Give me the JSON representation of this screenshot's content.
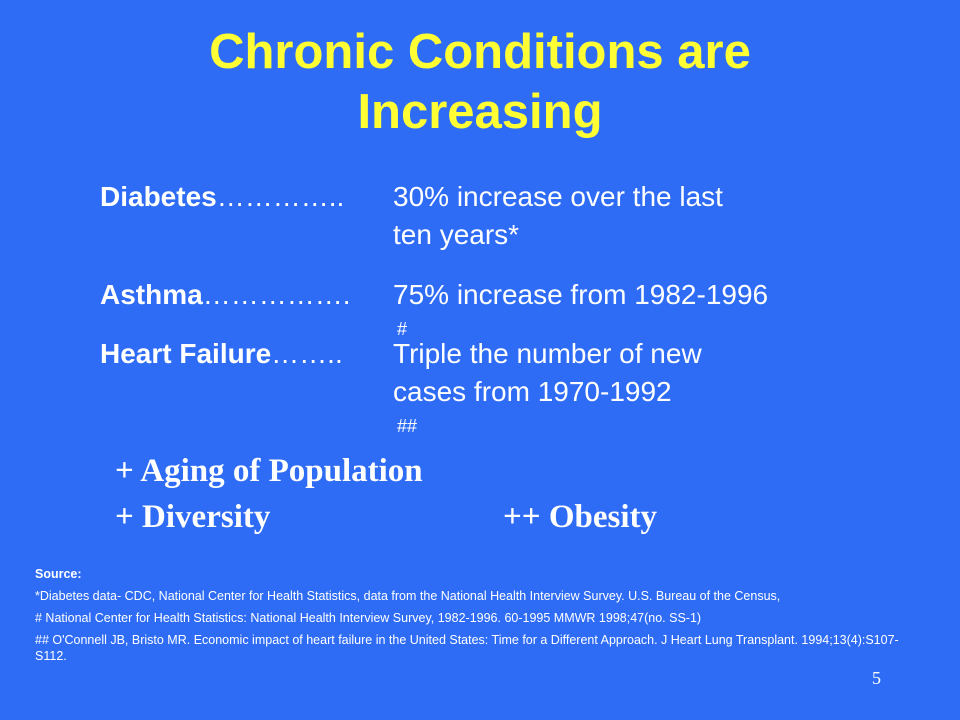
{
  "slide": {
    "title_line1": "Chronic Conditions are",
    "title_line2": "Increasing",
    "page_number": "5",
    "background_color": "#2E6CF6",
    "title_color": "#FFFF33"
  },
  "stats": [
    {
      "label": "Diabetes",
      "dots": "………….. ",
      "value_line1": "30% increase over the last",
      "value_line2": "ten years*",
      "marker": ""
    },
    {
      "label": "Asthma",
      "dots": "…………….",
      "value_line1": "75% increase from 1982-1996",
      "value_line2": "",
      "marker": "#"
    },
    {
      "label": "Heart Failure",
      "dots": "…….. ",
      "value_line1": "Triple the number of new",
      "value_line2": "cases from 1970-1992",
      "marker": "##"
    }
  ],
  "factors": {
    "aging": "+  Aging of Population",
    "diversity": "+  Diversity",
    "obesity": "++  Obesity"
  },
  "sources": {
    "heading": "Source:",
    "items": [
      "*Diabetes data- CDC, National Center for Health Statistics, data from the National Health Interview Survey. U.S. Bureau of the Census,",
      "# National Center for Health Statistics: National Health Interview Survey, 1982-1996. 60-1995 MMWR 1998;47(no. SS-1)",
      "## O'Connell JB, Bristo MR. Economic impact of heart failure in the United States: Time for a Different Approach. J Heart Lung Transplant. 1994;13(4):S107-S112."
    ]
  }
}
